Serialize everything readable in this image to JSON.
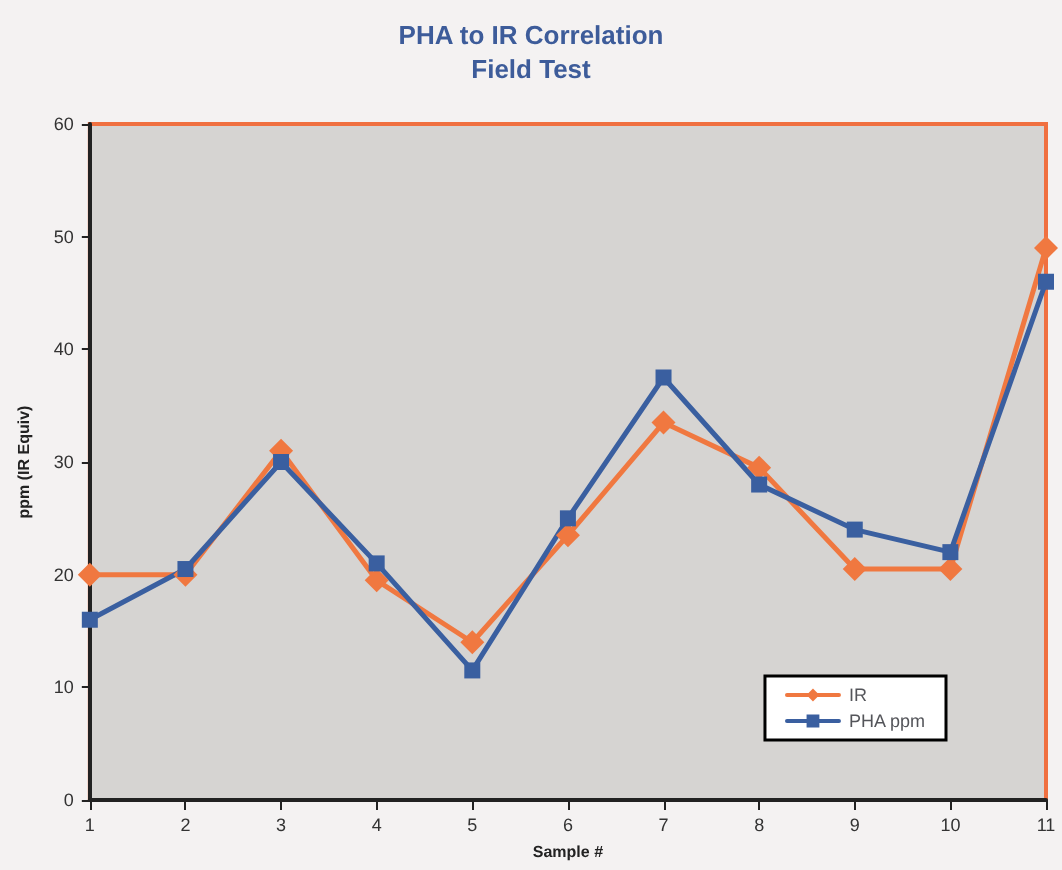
{
  "chart_data": {
    "type": "line",
    "title": "PHA to IR Correlation",
    "subtitle": "Field Test",
    "xlabel": "Sample #",
    "ylabel": "ppm (IR Equiv)",
    "x": [
      1,
      2,
      3,
      4,
      5,
      6,
      7,
      8,
      9,
      10,
      11
    ],
    "xlim": [
      1,
      11
    ],
    "xticks": [
      1,
      2,
      3,
      4,
      5,
      6,
      7,
      8,
      9,
      10,
      11
    ],
    "ylim": [
      0,
      60
    ],
    "yticks": [
      0,
      10,
      20,
      30,
      40,
      50,
      60
    ],
    "grid": false,
    "legend": "bottom right",
    "line_style": "solid",
    "series": [
      {
        "name": "IR",
        "color": "#f07840",
        "marker": "diamond",
        "values": [
          20,
          20,
          31,
          19.5,
          14,
          23.5,
          33.5,
          29.5,
          20.5,
          20.5,
          49
        ]
      },
      {
        "name": "PHA ppm",
        "color": "#3a5fa0",
        "marker": "square",
        "values": [
          16,
          20.5,
          30,
          21,
          11.5,
          25,
          37.5,
          28,
          24,
          22,
          46
        ]
      }
    ]
  }
}
